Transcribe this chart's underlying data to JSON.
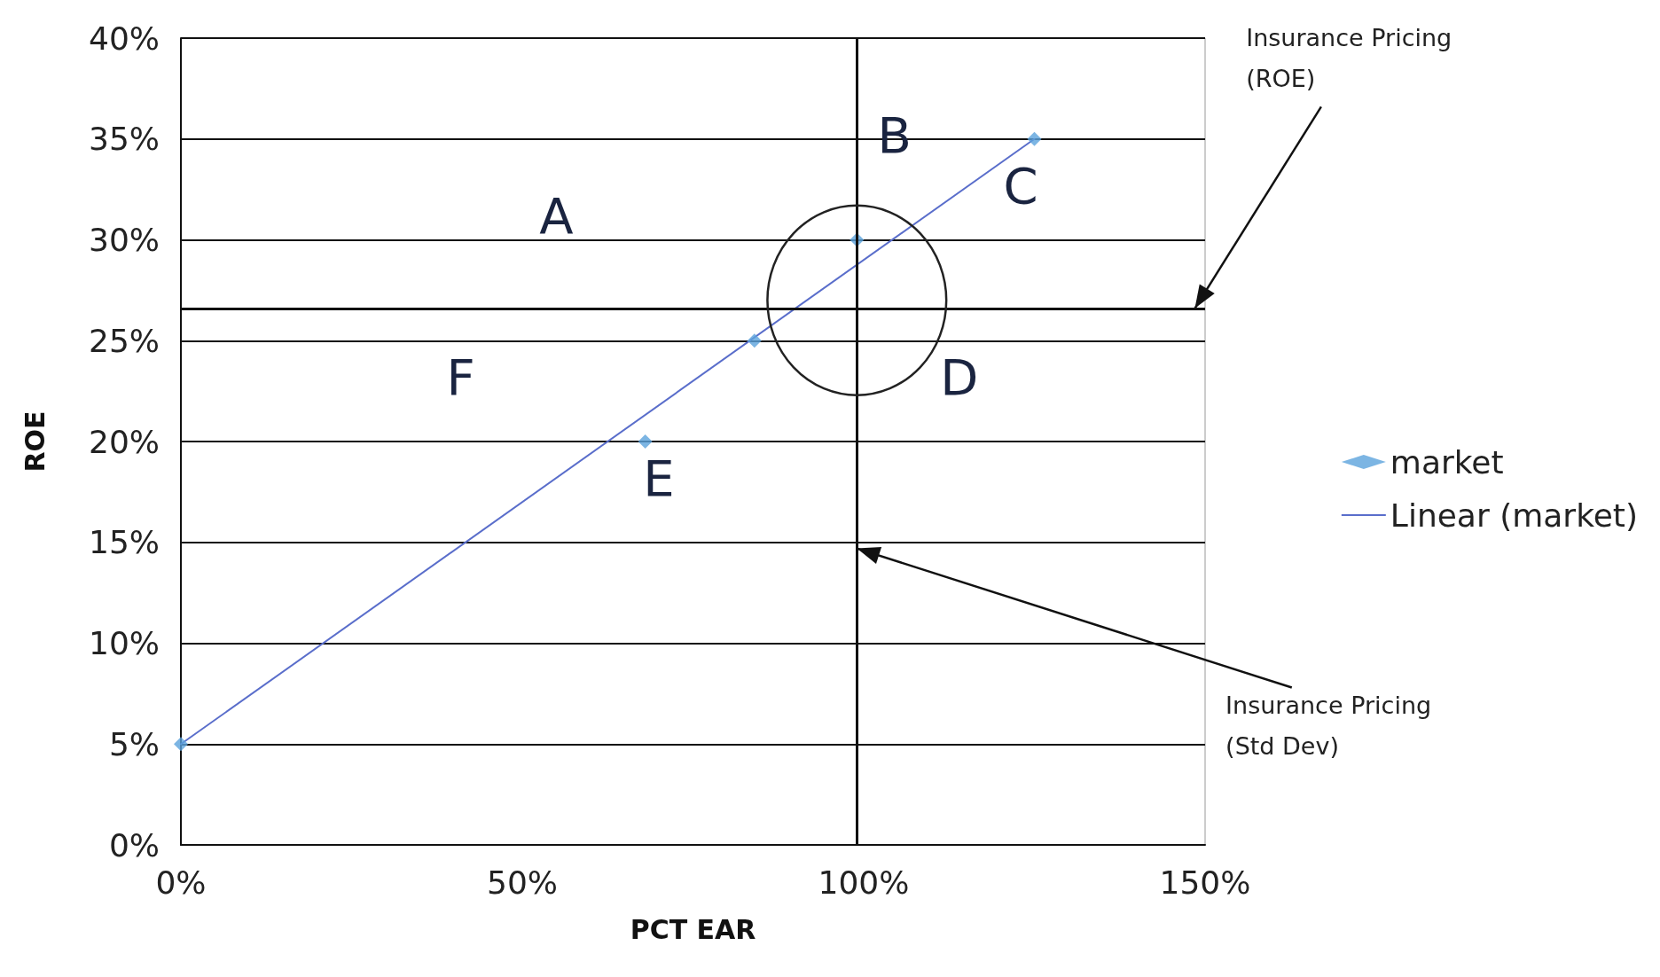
{
  "chart_data": {
    "type": "scatter",
    "xlabel": "PCT EAR",
    "ylabel": "ROE",
    "series": [
      {
        "name": "market",
        "type": "scatter",
        "color": "#5ba3dc",
        "marker": "diamond",
        "x": [
          0,
          68,
          84,
          99,
          125
        ],
        "values": [
          5,
          20,
          25,
          30,
          35
        ]
      },
      {
        "name": "Linear (market)",
        "type": "line",
        "color": "#5a6ecb",
        "marker": "none",
        "x": [
          0,
          125
        ],
        "values": [
          5,
          35
        ]
      }
    ],
    "xlim": [
      0,
      150
    ],
    "ylim": [
      0,
      40
    ],
    "xticks": [
      {
        "value": 0,
        "label": "0%"
      },
      {
        "value": 50,
        "label": "50%"
      },
      {
        "value": 100,
        "label": "100%"
      },
      {
        "value": 150,
        "label": "150%"
      }
    ],
    "yticks": [
      {
        "value": 0,
        "label": "0%"
      },
      {
        "value": 5,
        "label": "5%"
      },
      {
        "value": 10,
        "label": "10%"
      },
      {
        "value": 15,
        "label": "15%"
      },
      {
        "value": 20,
        "label": "20%"
      },
      {
        "value": 25,
        "label": "25%"
      },
      {
        "value": 30,
        "label": "30%"
      },
      {
        "value": 35,
        "label": "35%"
      },
      {
        "value": 40,
        "label": "40%"
      }
    ],
    "ref_lines": [
      {
        "axis": "y",
        "value": 26.6,
        "color": "#111111"
      },
      {
        "axis": "x",
        "value": 99,
        "color": "#111111"
      }
    ],
    "annotations": [
      "A",
      "B",
      "C",
      "D",
      "E",
      "F",
      {
        "text": "Insurance Pricing (ROE)",
        "x": 148.5,
        "y": 26.6
      },
      {
        "text": "Insurance Pricing (Std Dev)",
        "x": 99,
        "y": 14.7
      }
    ],
    "grid": "y",
    "legend": "right"
  }
}
